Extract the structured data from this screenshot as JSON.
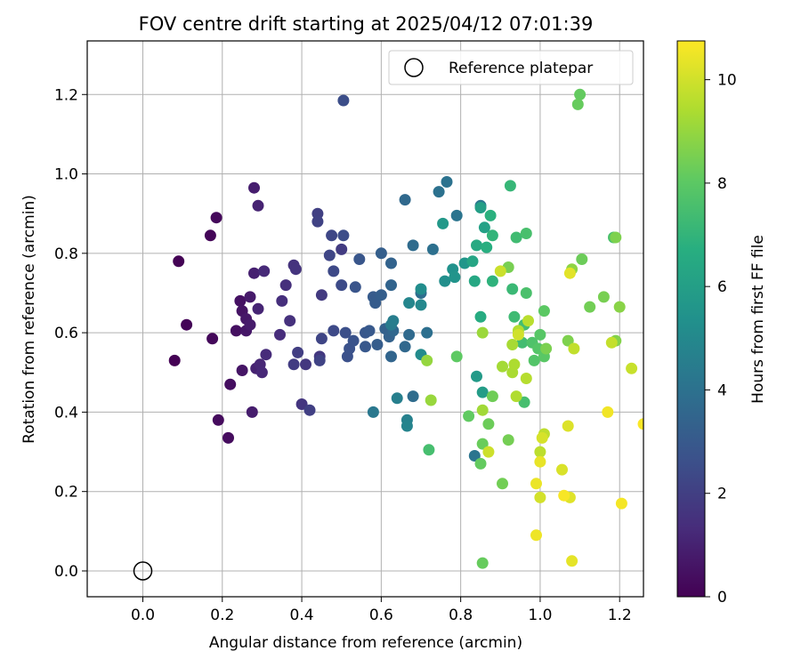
{
  "chart_data": {
    "type": "scatter",
    "title": "FOV centre drift starting at 2025/04/12 07:01:39",
    "xlabel": "Angular distance from reference (arcmin)",
    "ylabel": "Rotation from reference (arcmin)",
    "xlim": [
      -0.14,
      1.26
    ],
    "ylim": [
      -0.065,
      1.335
    ],
    "xticks": [
      0.0,
      0.2,
      0.4,
      0.6,
      0.8,
      1.0,
      1.2
    ],
    "xtick_labels": [
      "0.0",
      "0.2",
      "0.4",
      "0.6",
      "0.8",
      "1.0",
      "1.2"
    ],
    "yticks": [
      0.0,
      0.2,
      0.4,
      0.6,
      0.8,
      1.0,
      1.2
    ],
    "ytick_labels": [
      "0.0",
      "0.2",
      "0.4",
      "0.6",
      "0.8",
      "1.0",
      "1.2"
    ],
    "grid": true,
    "legend": {
      "placement": "top-right",
      "entries": [
        "Reference platepar"
      ]
    },
    "reference_point": {
      "name": "Reference platepar",
      "x": 0.0,
      "y": 0.0,
      "marker": "open-circle"
    },
    "colorbar": {
      "label": "Hours from first FF file",
      "min": 0,
      "max": 10.75,
      "ticks": [
        0,
        2,
        4,
        6,
        8,
        10
      ],
      "tick_labels": [
        "0",
        "2",
        "4",
        "6",
        "8",
        "10"
      ],
      "colormap": "viridis"
    },
    "points": [
      [
        0.08,
        0.53,
        0.0
      ],
      [
        0.09,
        0.78,
        0.05
      ],
      [
        0.11,
        0.62,
        0.1
      ],
      [
        0.17,
        0.845,
        0.15
      ],
      [
        0.175,
        0.585,
        0.2
      ],
      [
        0.185,
        0.89,
        0.25
      ],
      [
        0.19,
        0.38,
        0.3
      ],
      [
        0.215,
        0.335,
        0.35
      ],
      [
        0.22,
        0.47,
        0.4
      ],
      [
        0.235,
        0.605,
        0.45
      ],
      [
        0.245,
        0.68,
        0.5
      ],
      [
        0.25,
        0.655,
        0.55
      ],
      [
        0.25,
        0.505,
        0.6
      ],
      [
        0.26,
        0.605,
        0.65
      ],
      [
        0.26,
        0.635,
        0.7
      ],
      [
        0.27,
        0.69,
        0.75
      ],
      [
        0.27,
        0.62,
        0.8
      ],
      [
        0.275,
        0.4,
        0.85
      ],
      [
        0.28,
        0.965,
        0.9
      ],
      [
        0.28,
        0.75,
        0.95
      ],
      [
        0.285,
        0.51,
        1.0
      ],
      [
        0.29,
        0.92,
        1.05
      ],
      [
        0.29,
        0.66,
        1.1
      ],
      [
        0.295,
        0.52,
        1.15
      ],
      [
        0.3,
        0.5,
        1.2
      ],
      [
        0.305,
        0.755,
        1.25
      ],
      [
        0.31,
        0.545,
        1.3
      ],
      [
        0.345,
        0.595,
        1.35
      ],
      [
        0.35,
        0.68,
        1.4
      ],
      [
        0.36,
        0.72,
        1.45
      ],
      [
        0.37,
        0.63,
        1.5
      ],
      [
        0.38,
        0.77,
        1.55
      ],
      [
        0.385,
        0.76,
        1.6
      ],
      [
        0.4,
        0.42,
        1.65
      ],
      [
        0.41,
        0.52,
        1.7
      ],
      [
        0.445,
        0.54,
        1.75
      ],
      [
        0.45,
        0.695,
        1.8
      ],
      [
        0.5,
        0.81,
        1.85
      ],
      [
        0.38,
        0.52,
        1.9
      ],
      [
        0.39,
        0.55,
        1.95
      ],
      [
        0.42,
        0.405,
        2.0
      ],
      [
        0.44,
        0.9,
        2.05
      ],
      [
        0.44,
        0.88,
        2.1
      ],
      [
        0.445,
        0.53,
        2.15
      ],
      [
        0.45,
        0.585,
        2.2
      ],
      [
        0.47,
        0.795,
        2.25
      ],
      [
        0.475,
        0.845,
        2.3
      ],
      [
        0.48,
        0.755,
        2.35
      ],
      [
        0.48,
        0.605,
        2.4
      ],
      [
        0.5,
        0.72,
        2.45
      ],
      [
        0.505,
        0.845,
        2.5
      ],
      [
        0.505,
        1.185,
        2.55
      ],
      [
        0.51,
        0.6,
        2.6
      ],
      [
        0.515,
        0.54,
        2.65
      ],
      [
        0.52,
        0.56,
        2.7
      ],
      [
        0.53,
        0.58,
        2.75
      ],
      [
        0.535,
        0.715,
        2.8
      ],
      [
        0.545,
        0.785,
        2.85
      ],
      [
        0.56,
        0.6,
        2.9
      ],
      [
        0.56,
        0.565,
        2.95
      ],
      [
        0.57,
        0.605,
        3.0
      ],
      [
        0.58,
        0.69,
        3.05
      ],
      [
        0.585,
        0.675,
        3.1
      ],
      [
        0.59,
        0.57,
        3.15
      ],
      [
        0.6,
        0.695,
        3.2
      ],
      [
        0.6,
        0.8,
        3.25
      ],
      [
        0.61,
        0.61,
        3.3
      ],
      [
        0.62,
        0.59,
        3.35
      ],
      [
        0.625,
        0.775,
        3.4
      ],
      [
        0.625,
        0.72,
        3.45
      ],
      [
        0.625,
        0.54,
        3.5
      ],
      [
        0.63,
        0.605,
        3.55
      ],
      [
        0.66,
        0.565,
        3.6
      ],
      [
        0.66,
        0.935,
        3.65
      ],
      [
        0.67,
        0.595,
        3.7
      ],
      [
        0.68,
        0.82,
        3.75
      ],
      [
        0.68,
        0.44,
        3.8
      ],
      [
        0.7,
        0.7,
        3.85
      ],
      [
        0.715,
        0.6,
        3.9
      ],
      [
        0.73,
        0.81,
        3.95
      ],
      [
        0.745,
        0.955,
        4.0
      ],
      [
        0.765,
        0.98,
        4.05
      ],
      [
        0.79,
        0.895,
        4.1
      ],
      [
        0.835,
        0.29,
        4.15
      ],
      [
        0.85,
        0.92,
        4.2
      ],
      [
        0.58,
        0.4,
        4.3
      ],
      [
        0.625,
        0.62,
        4.4
      ],
      [
        0.63,
        0.63,
        4.5
      ],
      [
        0.64,
        0.435,
        4.6
      ],
      [
        0.665,
        0.38,
        4.7
      ],
      [
        0.665,
        0.365,
        4.8
      ],
      [
        0.67,
        0.675,
        4.9
      ],
      [
        0.7,
        0.67,
        5.0
      ],
      [
        0.7,
        0.545,
        5.1
      ],
      [
        0.7,
        0.71,
        5.2
      ],
      [
        0.76,
        0.73,
        5.3
      ],
      [
        0.78,
        0.76,
        5.4
      ],
      [
        0.785,
        0.74,
        5.5
      ],
      [
        0.81,
        0.775,
        5.6
      ],
      [
        0.755,
        0.875,
        5.7
      ],
      [
        0.84,
        0.49,
        5.8
      ],
      [
        0.855,
        0.45,
        5.9
      ],
      [
        0.85,
        0.915,
        6.0
      ],
      [
        0.86,
        0.865,
        6.1
      ],
      [
        0.83,
        0.78,
        6.3
      ],
      [
        0.835,
        0.73,
        6.4
      ],
      [
        0.84,
        0.82,
        6.5
      ],
      [
        0.85,
        0.64,
        6.6
      ],
      [
        0.865,
        0.815,
        6.7
      ],
      [
        0.875,
        0.895,
        6.8
      ],
      [
        0.88,
        0.73,
        6.9
      ],
      [
        0.88,
        0.845,
        7.0
      ],
      [
        0.925,
        0.97,
        7.1
      ],
      [
        0.93,
        0.71,
        7.2
      ],
      [
        0.935,
        0.64,
        7.3
      ],
      [
        0.94,
        0.84,
        7.35
      ],
      [
        0.955,
        0.575,
        7.4
      ],
      [
        0.96,
        0.62,
        7.45
      ],
      [
        0.96,
        0.425,
        7.5
      ],
      [
        0.965,
        0.85,
        7.55
      ],
      [
        0.965,
        0.7,
        7.6
      ],
      [
        0.98,
        0.575,
        7.7
      ],
      [
        0.985,
        0.53,
        7.8
      ],
      [
        0.995,
        0.56,
        7.85
      ],
      [
        1.0,
        0.595,
        7.9
      ],
      [
        1.01,
        0.54,
        7.95
      ],
      [
        1.01,
        0.655,
        8.0
      ],
      [
        0.79,
        0.54,
        8.05
      ],
      [
        0.82,
        0.39,
        8.1
      ],
      [
        0.85,
        0.27,
        8.15
      ],
      [
        0.855,
        0.02,
        8.2
      ],
      [
        0.855,
        0.32,
        8.25
      ],
      [
        0.87,
        0.37,
        8.3
      ],
      [
        0.88,
        0.44,
        8.35
      ],
      [
        0.905,
        0.22,
        8.4
      ],
      [
        0.92,
        0.33,
        8.45
      ],
      [
        0.92,
        0.765,
        8.5
      ],
      [
        1.015,
        0.56,
        8.55
      ],
      [
        1.07,
        0.58,
        8.6
      ],
      [
        1.1,
        1.2,
        8.15
      ],
      [
        1.095,
        1.175,
        8.2
      ],
      [
        1.105,
        0.785,
        8.3
      ],
      [
        1.125,
        0.665,
        8.4
      ],
      [
        1.16,
        0.69,
        8.5
      ],
      [
        1.185,
        0.84,
        7.6
      ],
      [
        1.19,
        0.84,
        8.6
      ],
      [
        1.19,
        0.58,
        8.7
      ],
      [
        1.2,
        0.665,
        8.8
      ],
      [
        1.08,
        0.76,
        8.9
      ],
      [
        0.72,
        0.305,
        7.5
      ],
      [
        0.715,
        0.53,
        9.0
      ],
      [
        0.725,
        0.43,
        9.05
      ],
      [
        0.855,
        0.6,
        9.1
      ],
      [
        0.855,
        0.405,
        9.2
      ],
      [
        0.905,
        0.515,
        9.25
      ],
      [
        0.93,
        0.57,
        9.3
      ],
      [
        0.93,
        0.5,
        9.35
      ],
      [
        0.935,
        0.52,
        9.4
      ],
      [
        0.94,
        0.44,
        9.45
      ],
      [
        0.945,
        0.605,
        9.5
      ],
      [
        0.965,
        0.485,
        9.55
      ],
      [
        0.97,
        0.63,
        9.6
      ],
      [
        1.0,
        0.3,
        9.65
      ],
      [
        1.01,
        0.345,
        9.7
      ],
      [
        1.085,
        0.56,
        9.75
      ],
      [
        1.18,
        0.575,
        9.8
      ],
      [
        1.23,
        0.51,
        9.85
      ],
      [
        0.9,
        0.755,
        9.9
      ],
      [
        0.87,
        0.3,
        9.95
      ],
      [
        0.945,
        0.595,
        10.0
      ],
      [
        1.0,
        0.185,
        10.05
      ],
      [
        1.005,
        0.335,
        10.1
      ],
      [
        1.055,
        0.255,
        10.15
      ],
      [
        1.07,
        0.365,
        10.2
      ],
      [
        1.075,
        0.185,
        10.25
      ],
      [
        1.075,
        0.75,
        10.3
      ],
      [
        1.08,
        0.025,
        10.35
      ],
      [
        1.0,
        0.275,
        10.4
      ],
      [
        0.99,
        0.22,
        10.45
      ],
      [
        0.99,
        0.09,
        10.5
      ],
      [
        1.17,
        0.4,
        10.55
      ],
      [
        1.205,
        0.17,
        10.6
      ],
      [
        1.06,
        0.19,
        10.65
      ],
      [
        1.26,
        0.37,
        10.7
      ]
    ]
  }
}
